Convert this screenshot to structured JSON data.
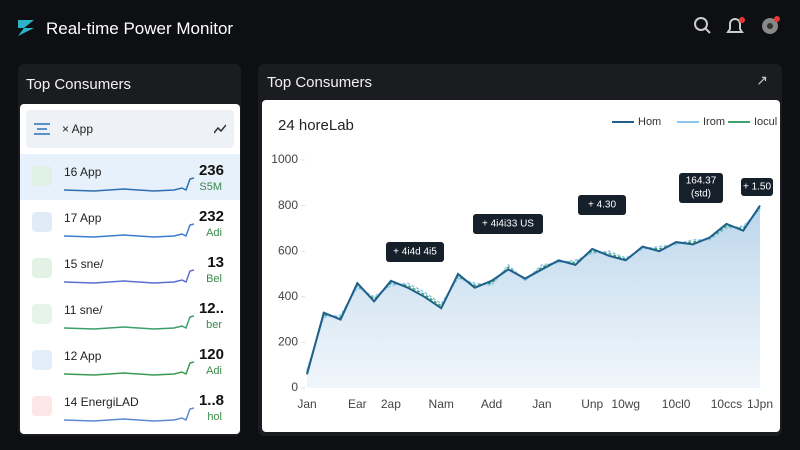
{
  "header": {
    "title": "Real-time Power Monitor"
  },
  "sidebar": {
    "title": "Top Consumers",
    "filter": "× App",
    "items": [
      {
        "name": "16 App",
        "value": "236",
        "detail": "S5M"
      },
      {
        "name": "17 App",
        "value": "232",
        "detail": "Adi"
      },
      {
        "name": "15 sne/",
        "value": "13",
        "detail": "Bel"
      },
      {
        "name": "11 sne/",
        "value": "12..",
        "detail": "ber"
      },
      {
        "name": "12 App",
        "value": "120",
        "detail": "Adi"
      },
      {
        "name": "14 EnergiLAD",
        "value": "1..8",
        "detail": "hol"
      }
    ]
  },
  "panel": {
    "title": "Top Consumers"
  },
  "chart_data": {
    "type": "line",
    "title": "24 horeLab",
    "categories": [
      "Jan",
      null,
      null,
      "Ear",
      null,
      "2ap",
      null,
      null,
      "Nam",
      null,
      null,
      "Add",
      null,
      null,
      "Jan",
      null,
      null,
      "Unp",
      null,
      "10wg",
      null,
      null,
      "10cl0",
      null,
      null,
      "10ccs",
      null,
      "1Jpn"
    ],
    "series": [
      {
        "name": "Hom",
        "color": "#1f5f8b",
        "values": [
          60,
          330,
          300,
          460,
          380,
          470,
          440,
          400,
          350,
          500,
          440,
          470,
          520,
          480,
          520,
          560,
          540,
          610,
          580,
          560,
          620,
          600,
          640,
          630,
          660,
          720,
          690,
          800
        ]
      },
      {
        "name": "Irom",
        "color": "#8ec5ef",
        "values": [
          80,
          310,
          320,
          440,
          400,
          450,
          460,
          420,
          370,
          480,
          460,
          450,
          540,
          470,
          540,
          550,
          560,
          590,
          600,
          570,
          610,
          620,
          630,
          650,
          650,
          700,
          710,
          780
        ]
      },
      {
        "name": "Iocul",
        "color": "#3fa36b",
        "values": [
          70,
          320,
          310,
          450,
          390,
          460,
          450,
          410,
          360,
          490,
          450,
          460,
          530,
          475,
          530,
          555,
          550,
          600,
          590,
          565,
          615,
          610,
          635,
          640,
          655,
          710,
          700,
          790
        ]
      }
    ],
    "ylim": [
      0,
      1000
    ],
    "yticks": [
      0,
      200,
      400,
      600,
      800,
      1000
    ],
    "annotations": [
      "+ 4i4d 4i5",
      "+ 4i4i33 US",
      "+ 4.30",
      "164.37",
      "(std)",
      "+ 1.50"
    ]
  }
}
